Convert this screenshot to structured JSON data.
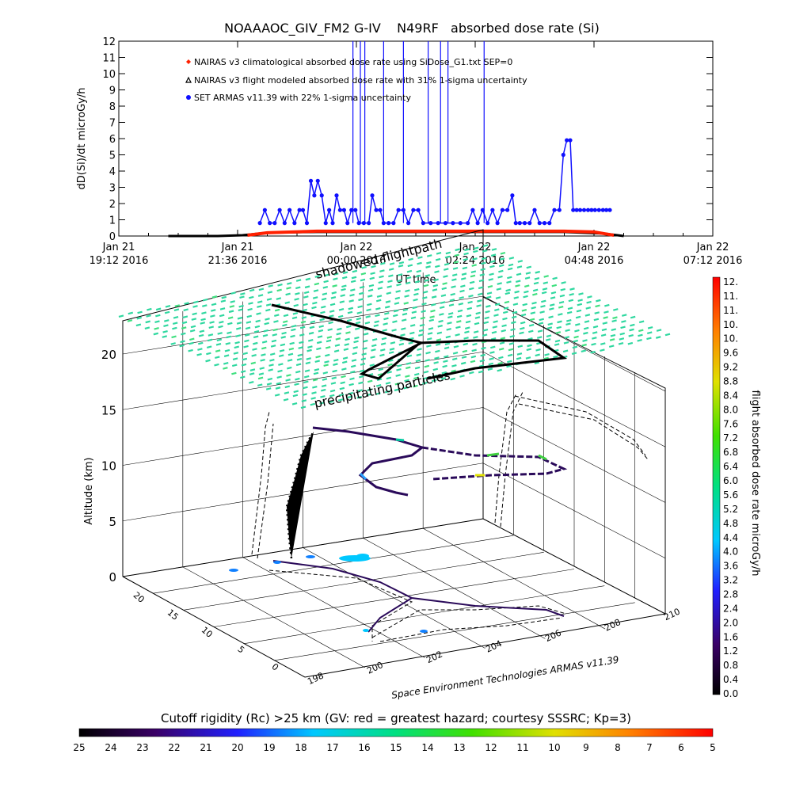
{
  "chart_data": [
    {
      "type": "line",
      "title": "NOAAAOC_GIV_FM2 G-IV    N49RF   absorbed dose rate (Si)",
      "ylabel": "dD(Si)/dt microGy/h",
      "xlabel": "UT time",
      "ylim": [
        0,
        12
      ],
      "yticks": [
        "0",
        "1",
        "2",
        "3",
        "4",
        "5",
        "6",
        "7",
        "8",
        "9",
        "10",
        "11",
        "12"
      ],
      "xticks": [
        {
          "top": "Jan 21",
          "bottom": "19:12 2016"
        },
        {
          "top": "Jan 21",
          "bottom": "21:36 2016"
        },
        {
          "top": "Jan 22",
          "bottom": "00:00 2016"
        },
        {
          "top": "Jan 22",
          "bottom": "02:24 2016"
        },
        {
          "top": "Jan 22",
          "bottom": "04:48 2016"
        },
        {
          "top": "Jan 22",
          "bottom": "07:12 2016"
        }
      ],
      "x_hours_from_start": [
        0,
        2.4,
        4.8,
        7.2,
        9.6,
        12.0
      ],
      "legend": [
        {
          "label": "NAIRAS v3 climatological absorbed dose rate using SiDose_G1.txt SEP=0",
          "color": "#ff2000",
          "marker": "diamond"
        },
        {
          "label": "NAIRAS v3 flight modeled absorbed dose rate with 31% 1-sigma uncertainty",
          "color": "#000000",
          "marker": "triangle"
        },
        {
          "label": "SET ARMAS v11.39 with 22% 1-sigma uncertainty",
          "color": "#1010ff",
          "marker": "circle"
        }
      ],
      "series": [
        {
          "name": "SET ARMAS v11.39 with 22% 1-sigma uncertainty",
          "points": [
            [
              2.85,
              0.8
            ],
            [
              2.95,
              1.6
            ],
            [
              3.05,
              0.8
            ],
            [
              3.15,
              0.8
            ],
            [
              3.25,
              1.6
            ],
            [
              3.35,
              0.8
            ],
            [
              3.45,
              1.6
            ],
            [
              3.55,
              0.8
            ],
            [
              3.65,
              1.6
            ],
            [
              3.72,
              1.6
            ],
            [
              3.8,
              0.8
            ],
            [
              3.88,
              3.4
            ],
            [
              3.95,
              2.5
            ],
            [
              4.02,
              3.4
            ],
            [
              4.1,
              2.5
            ],
            [
              4.18,
              0.8
            ],
            [
              4.25,
              1.6
            ],
            [
              4.32,
              0.8
            ],
            [
              4.4,
              2.5
            ],
            [
              4.47,
              1.6
            ],
            [
              4.55,
              1.6
            ],
            [
              4.62,
              0.8
            ],
            [
              4.7,
              1.6
            ],
            [
              4.78,
              1.6
            ],
            [
              4.85,
              0.8
            ],
            [
              4.95,
              0.8
            ],
            [
              5.05,
              0.8
            ],
            [
              5.12,
              2.5
            ],
            [
              5.2,
              1.6
            ],
            [
              5.28,
              1.6
            ],
            [
              5.35,
              0.8
            ],
            [
              5.45,
              0.8
            ],
            [
              5.55,
              0.8
            ],
            [
              5.65,
              1.6
            ],
            [
              5.75,
              1.6
            ],
            [
              5.85,
              0.8
            ],
            [
              5.95,
              1.6
            ],
            [
              6.05,
              1.6
            ],
            [
              6.15,
              0.8
            ],
            [
              6.3,
              0.8
            ],
            [
              6.45,
              0.8
            ],
            [
              6.6,
              0.8
            ],
            [
              6.75,
              0.8
            ],
            [
              6.9,
              0.8
            ],
            [
              7.05,
              0.8
            ],
            [
              7.15,
              1.6
            ],
            [
              7.25,
              0.8
            ],
            [
              7.35,
              1.6
            ],
            [
              7.45,
              0.8
            ],
            [
              7.55,
              1.6
            ],
            [
              7.65,
              0.8
            ],
            [
              7.75,
              1.6
            ],
            [
              7.85,
              1.6
            ],
            [
              7.95,
              2.5
            ],
            [
              8.02,
              0.8
            ],
            [
              8.1,
              0.8
            ],
            [
              8.2,
              0.8
            ],
            [
              8.3,
              0.8
            ],
            [
              8.4,
              1.6
            ],
            [
              8.5,
              0.8
            ],
            [
              8.6,
              0.8
            ],
            [
              8.7,
              0.8
            ],
            [
              8.8,
              1.6
            ],
            [
              8.9,
              1.6
            ],
            [
              8.98,
              5.0
            ],
            [
              9.05,
              5.9
            ],
            [
              9.12,
              5.9
            ],
            [
              9.18,
              1.6
            ],
            [
              9.25,
              1.6
            ],
            [
              9.32,
              1.6
            ],
            [
              9.4,
              1.6
            ],
            [
              9.48,
              1.6
            ],
            [
              9.55,
              1.6
            ],
            [
              9.62,
              1.6
            ],
            [
              9.7,
              1.6
            ],
            [
              9.78,
              1.6
            ],
            [
              9.85,
              1.6
            ],
            [
              9.92,
              1.6
            ]
          ],
          "spikes_beyond_12": [
            4.73,
            4.88,
            4.97,
            5.35,
            5.75,
            6.25,
            6.5,
            6.65,
            7.38
          ]
        },
        {
          "name": "NAIRAS v3 climatological absorbed dose rate using SiDose_G1.txt SEP=0",
          "points": [
            [
              2.6,
              0.05
            ],
            [
              3.0,
              0.2
            ],
            [
              4.0,
              0.3
            ],
            [
              5.0,
              0.3
            ],
            [
              6.0,
              0.3
            ],
            [
              7.0,
              0.3
            ],
            [
              8.0,
              0.3
            ],
            [
              9.0,
              0.3
            ],
            [
              9.6,
              0.25
            ],
            [
              10.0,
              0.05
            ]
          ]
        },
        {
          "name": "NAIRAS v3 flight modeled absorbed dose rate with 31% 1-sigma uncertainty",
          "points": [
            [
              1.0,
              0.0
            ],
            [
              2.0,
              0.0
            ],
            [
              2.5,
              0.05
            ],
            [
              3.0,
              0.2
            ],
            [
              4.0,
              0.25
            ],
            [
              5.0,
              0.25
            ],
            [
              6.0,
              0.25
            ],
            [
              7.0,
              0.25
            ],
            [
              8.0,
              0.25
            ],
            [
              9.0,
              0.25
            ],
            [
              9.8,
              0.15
            ],
            [
              10.2,
              0.0
            ]
          ]
        }
      ]
    },
    {
      "type": "scatter",
      "zlabel": "Altitude (km)",
      "zticks": [
        "0",
        "5",
        "10",
        "15",
        "20"
      ],
      "yticks": [
        "0",
        "5",
        "10",
        "15",
        "20"
      ],
      "xticks": [
        "198",
        "200",
        "202",
        "204",
        "206",
        "208",
        "210"
      ],
      "annotations": [
        "shadowed flightpath",
        "precipitating particles"
      ],
      "credit": "Space Environment Technologies ARMAS v11.39"
    },
    {
      "type": "heatmap",
      "colorbar_label": "flight absorbed dose rate microGy/h",
      "colorbar_ticks": [
        "12.",
        "11.",
        "11.",
        "10.",
        "10.",
        "9.6",
        "9.2",
        "8.8",
        "8.4",
        "8.0",
        "7.6",
        "7.2",
        "6.8",
        "6.4",
        "6.0",
        "5.6",
        "5.2",
        "4.8",
        "4.4",
        "4.0",
        "3.6",
        "3.2",
        "2.8",
        "2.4",
        "2.0",
        "1.6",
        "1.2",
        "0.8",
        "0.4",
        "0.0"
      ]
    },
    {
      "type": "heatmap",
      "colorbar_label": "Cutoff rigidity (Rc) >25 km (GV: red = greatest hazard; courtesy SSSRC; Kp=3)",
      "colorbar_ticks": [
        "25",
        "24",
        "23",
        "22",
        "21",
        "20",
        "19",
        "18",
        "17",
        "16",
        "15",
        "14",
        "13",
        "12",
        "11",
        "10",
        "9",
        "8",
        "7",
        "6",
        "5"
      ]
    }
  ]
}
